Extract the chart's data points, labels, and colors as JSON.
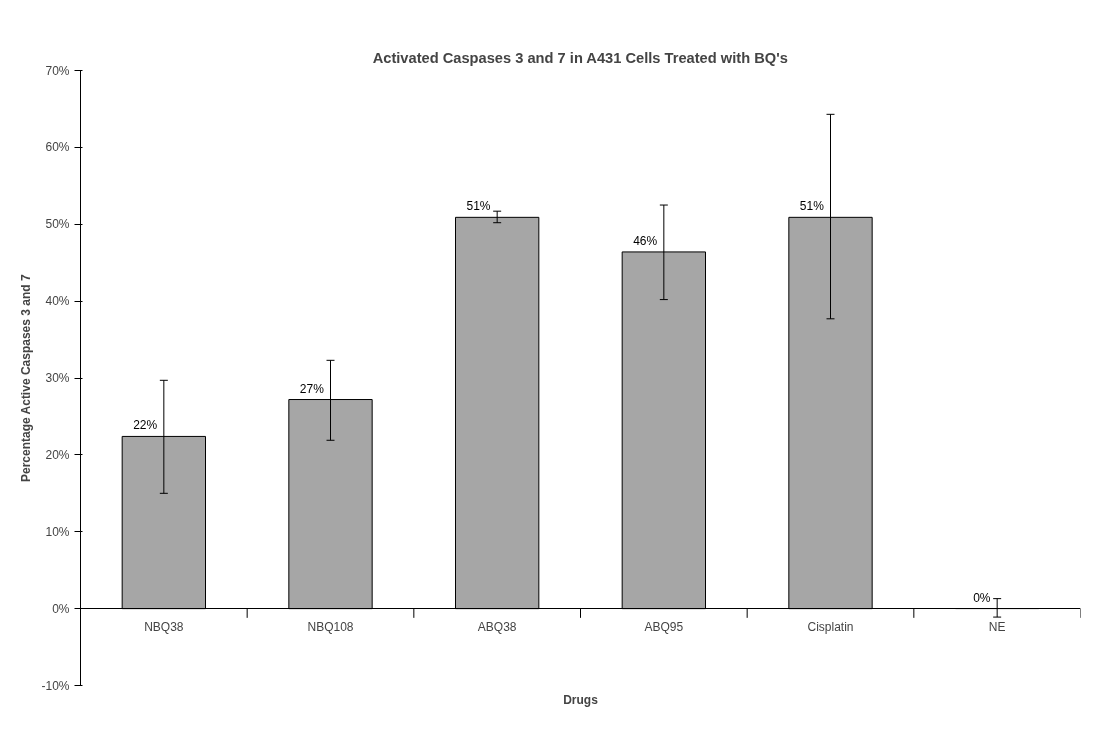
{
  "chart_data": {
    "type": "bar",
    "title": "Activated Caspases 3 and 7 in A431 Cells Treated with BQ's",
    "xlabel": "Drugs",
    "ylabel": "Percentage Active Caspases 3 and 7",
    "categories": [
      "NBQ38",
      "NBQ108",
      "ABQ38",
      "ABQ95",
      "Cisplatin",
      "NE"
    ],
    "values": [
      22.4,
      27.2,
      50.9,
      46.4,
      50.9,
      0
    ],
    "errors": [
      [
        15,
        29.7
      ],
      [
        21.9,
        32.3
      ],
      [
        50.2,
        51.7
      ],
      [
        40.2,
        52.5
      ],
      [
        37.7,
        64.3
      ],
      [
        -1.1,
        1.3
      ]
    ],
    "value_labels": [
      "22%",
      "27%",
      "51%",
      "46%",
      "51%",
      "0%"
    ],
    "color": "#a6a6a6",
    "ylim": [
      -10,
      70
    ],
    "yticks": [
      {
        "value": -10,
        "label": "-10%"
      },
      {
        "value": 0,
        "label": "0%"
      },
      {
        "value": 10,
        "label": "10%"
      },
      {
        "value": 20,
        "label": "20%"
      },
      {
        "value": 30,
        "label": "30%"
      },
      {
        "value": 40,
        "label": "40%"
      },
      {
        "value": 50,
        "label": "50%"
      },
      {
        "value": 60,
        "label": "60%"
      },
      {
        "value": 70,
        "label": "70%"
      }
    ],
    "grid": false
  }
}
